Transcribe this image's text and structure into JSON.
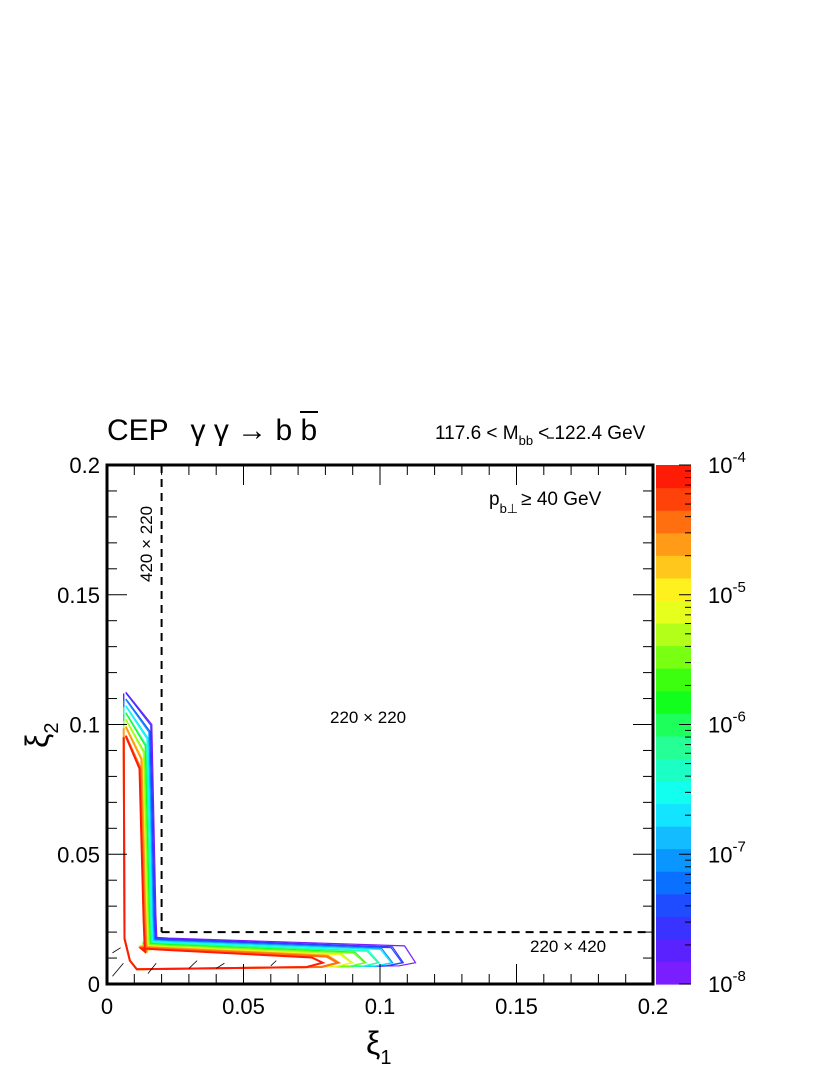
{
  "chart_data": {
    "type": "contour",
    "title_prefix": "CEP",
    "title_math": "γ γ → b b",
    "mass_cut_left": "117.6 < M",
    "mass_cut_sub": "bb",
    "mass_cut_right": "< 122.4 GeV",
    "pt_cut_p": "p",
    "pt_cut_sub": "b⊥",
    "pt_cut_text": "≥ 40 GeV",
    "xlabel": "ξ",
    "xlabel_sub": "1",
    "ylabel": "ξ",
    "ylabel_sub": "2",
    "xlim": [
      0,
      0.2
    ],
    "ylim": [
      0,
      0.2
    ],
    "x_ticks": [
      {
        "value": 0,
        "label": "0"
      },
      {
        "value": 0.05,
        "label": "0.05"
      },
      {
        "value": 0.1,
        "label": "0.1"
      },
      {
        "value": 0.15,
        "label": "0.15"
      },
      {
        "value": 0.2,
        "label": "0.2"
      }
    ],
    "y_ticks": [
      {
        "value": 0,
        "label": "0"
      },
      {
        "value": 0.05,
        "label": "0.05"
      },
      {
        "value": 0.1,
        "label": "0.1"
      },
      {
        "value": 0.15,
        "label": "0.15"
      },
      {
        "value": 0.2,
        "label": "0.2"
      }
    ],
    "z_scale": "log",
    "zlim": [
      1e-08,
      0.0001
    ],
    "colorbar_ticks": [
      {
        "exp": -4,
        "base": "10",
        "sup": "-4"
      },
      {
        "exp": -5,
        "base": "10",
        "sup": "-5"
      },
      {
        "exp": -6,
        "base": "10",
        "sup": "-6"
      },
      {
        "exp": -7,
        "base": "10",
        "sup": "-7"
      },
      {
        "exp": -8,
        "base": "10",
        "sup": "-8"
      }
    ],
    "colorbar_colors": [
      "#7a1dff",
      "#5a22ff",
      "#3a32ff",
      "#1f4cff",
      "#0a70ff",
      "#0996ff",
      "#12bcff",
      "#13e4ff",
      "#12fff0",
      "#1bffc4",
      "#26ff96",
      "#1dff5a",
      "#12ff1e",
      "#3cff10",
      "#78ff12",
      "#b3ff19",
      "#e6ff1d",
      "#fff11e",
      "#ffc61b",
      "#ff9b16",
      "#ff6f10",
      "#ff420a",
      "#ff1c06"
    ],
    "acceptance_cut": 0.02,
    "region_labels": [
      {
        "text": "420 × 220"
      },
      {
        "text": "220 × 220"
      },
      {
        "text": "220 × 420"
      }
    ],
    "contour_shape": {
      "arm_x": 0.0064,
      "arm_y": 0.0062,
      "corner_outer": 0.0055,
      "corner_inner": 0.0145,
      "vertical_arm_tip_y": [
        0.099,
        0.102,
        0.104,
        0.106,
        0.108,
        0.11,
        0.112
      ],
      "horizontal_arm_tip_x": [
        0.085,
        0.09,
        0.094,
        0.098,
        0.102,
        0.106,
        0.109,
        0.113
      ]
    }
  }
}
